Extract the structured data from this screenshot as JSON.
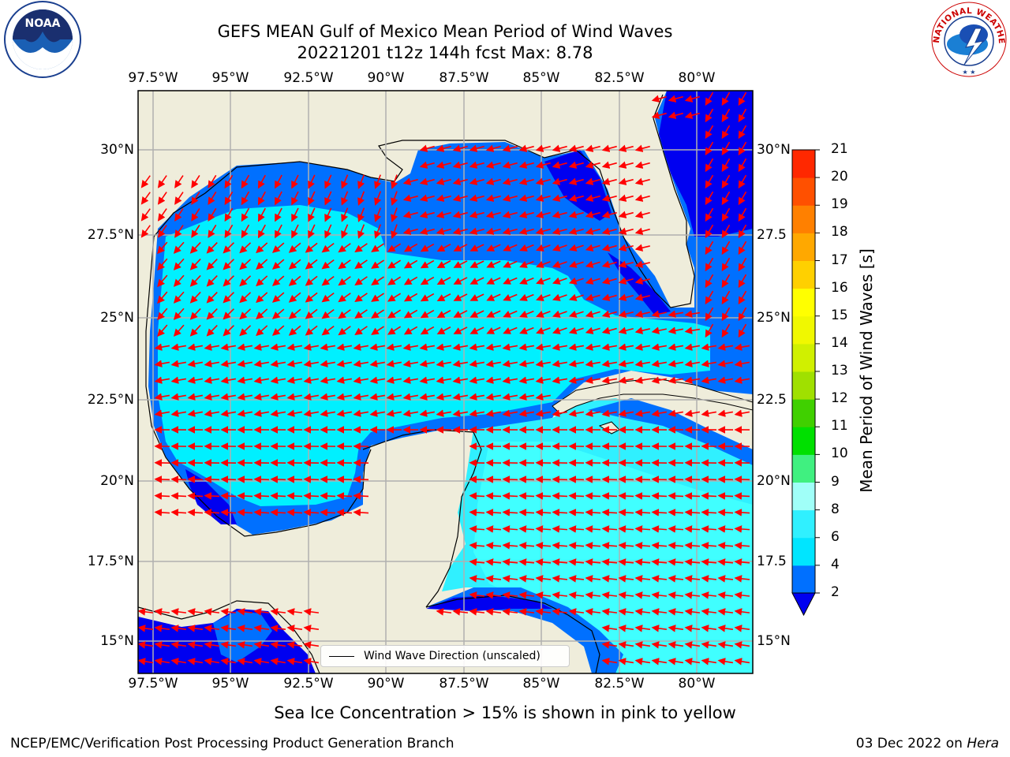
{
  "title_line1": "GEFS MEAN Gulf of Mexico Mean Period of Wind Waves",
  "title_line2": "20221201 t12z 144h fcst   Max: 8.78",
  "lon_labels": [
    "97.5°W",
    "95°W",
    "92.5°W",
    "90°W",
    "87.5°W",
    "85°W",
    "82.5°W",
    "80°W"
  ],
  "lat_labels_left": [
    "30°N",
    "27.5°N",
    "25°N",
    "22.5°N",
    "20°N",
    "17.5°N",
    "15°N"
  ],
  "lat_labels_right": [
    "30°N",
    "27.5",
    "25°N",
    "22.5",
    "20°N",
    "17.5",
    "15°N"
  ],
  "legend_label": "Wind Wave Direction (unscaled)",
  "colorbar": {
    "label": "Mean Period of Wind Waves [s]",
    "ticks": [
      "2",
      "4",
      "6",
      "8",
      "9",
      "10",
      "11",
      "12",
      "13",
      "14",
      "15",
      "16",
      "17",
      "18",
      "19",
      "20",
      "21"
    ],
    "colors": [
      "#0070ff",
      "#00e5ff",
      "#30f0ff",
      "#a0fff8",
      "#40f080",
      "#00e000",
      "#40d000",
      "#a0e000",
      "#d0f000",
      "#f0f800",
      "#ffff00",
      "#ffd000",
      "#ffa800",
      "#ff8000",
      "#ff5000",
      "#ff2800",
      "#ff0000"
    ],
    "extend_color": "#0000f0"
  },
  "bottom_note": "Sea Ice Concentration > 15% is shown in pink to yellow",
  "footer_left": "NCEP/EMC/Verification Post Processing Product Generation Branch",
  "footer_date": "03 Dec 2022 on ",
  "footer_host": "Hera",
  "logos": {
    "left": "noaa-logo",
    "right": "national-weather-service-logo",
    "noaa_text": "NOAA",
    "nws_text": "NATIONAL WEATHER SERVICE"
  },
  "colors": {
    "land": "#efeddb",
    "water_low": "#0000f0",
    "water_mid": "#0070ff",
    "water_high": "#00f0ff",
    "water_top": "#40ffff",
    "arrow": "#ff0000",
    "grid": "#b0b0b0"
  }
}
